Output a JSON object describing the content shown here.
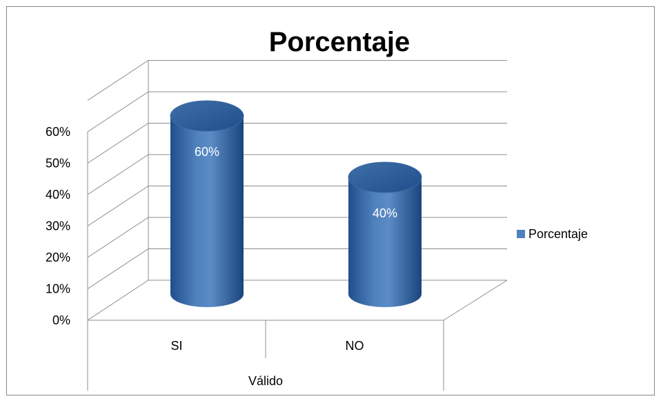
{
  "chart_data": {
    "type": "bar",
    "title": "Porcentaje",
    "categories": [
      "SI",
      "NO"
    ],
    "category_group_label": "Válido",
    "series": [
      {
        "name": "Porcentaje",
        "values": [
          60,
          40
        ],
        "data_labels": [
          "60%",
          "40%"
        ]
      }
    ],
    "ylim": [
      0,
      60
    ],
    "y_ticks": [
      "0%",
      "10%",
      "20%",
      "30%",
      "40%",
      "50%",
      "60%"
    ],
    "grid": true,
    "legend_position": "right",
    "bar_style": "3d-cylinder",
    "colors": {
      "bar": "#4f81bd",
      "bar_dark": "#1f4e8c",
      "grid": "#8c8c8c",
      "frame": "#868686"
    }
  }
}
